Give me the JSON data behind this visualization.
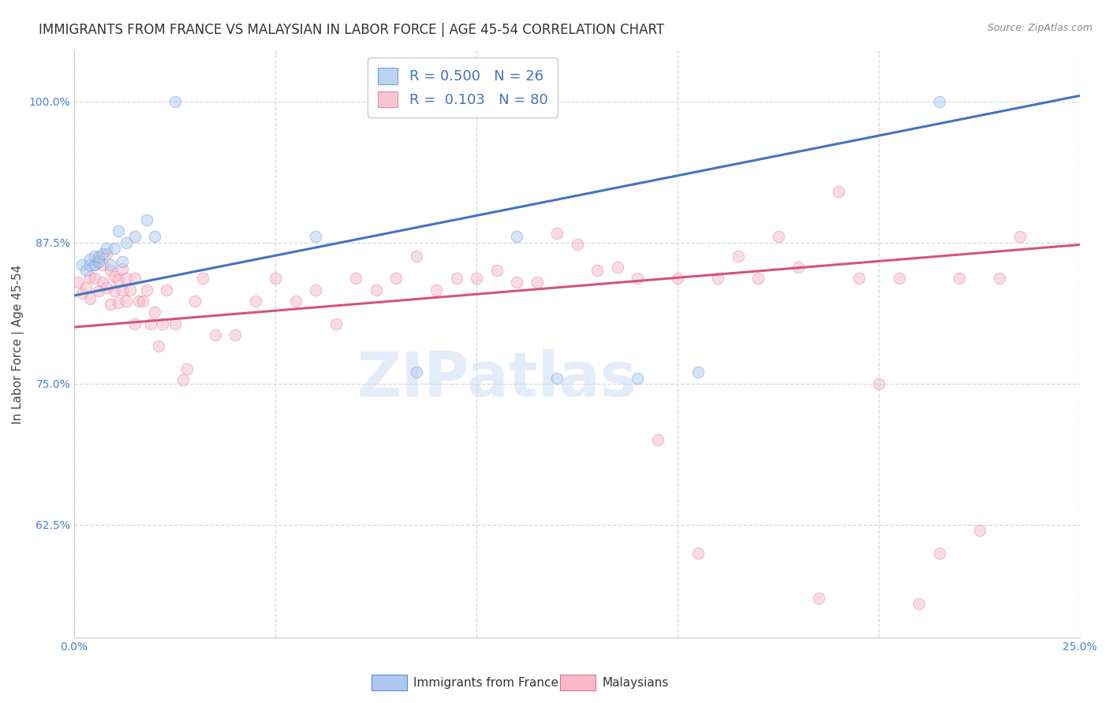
{
  "title": "IMMIGRANTS FROM FRANCE VS MALAYSIAN IN LABOR FORCE | AGE 45-54 CORRELATION CHART",
  "source": "Source: ZipAtlas.com",
  "ylabel": "In Labor Force | Age 45-54",
  "xlim": [
    0.0,
    0.25
  ],
  "ylim": [
    0.525,
    1.045
  ],
  "xticks": [
    0.0,
    0.05,
    0.1,
    0.15,
    0.2,
    0.25
  ],
  "xticklabels": [
    "0.0%",
    "",
    "",
    "",
    "",
    "25.0%"
  ],
  "yticks": [
    0.625,
    0.75,
    0.875,
    1.0
  ],
  "yticklabels": [
    "62.5%",
    "75.0%",
    "87.5%",
    "100.0%"
  ],
  "blue_fill_color": "#adc8f0",
  "blue_edge_color": "#5b8fd4",
  "pink_fill_color": "#f7b8c8",
  "pink_edge_color": "#e07090",
  "blue_line_color": "#4472c4",
  "pink_line_color": "#d4547a",
  "blue_R": 0.5,
  "blue_N": 26,
  "pink_R": 0.103,
  "pink_N": 80,
  "blue_scatter_x": [
    0.002,
    0.003,
    0.004,
    0.004,
    0.005,
    0.005,
    0.006,
    0.006,
    0.007,
    0.008,
    0.009,
    0.01,
    0.011,
    0.012,
    0.013,
    0.015,
    0.018,
    0.02,
    0.025,
    0.06,
    0.085,
    0.11,
    0.12,
    0.14,
    0.155,
    0.215
  ],
  "blue_scatter_y": [
    0.855,
    0.85,
    0.855,
    0.86,
    0.855,
    0.863,
    0.858,
    0.862,
    0.865,
    0.87,
    0.855,
    0.87,
    0.885,
    0.858,
    0.875,
    0.88,
    0.895,
    0.88,
    1.0,
    0.88,
    0.76,
    0.88,
    0.755,
    0.755,
    0.76,
    1.0
  ],
  "pink_scatter_x": [
    0.001,
    0.002,
    0.003,
    0.004,
    0.004,
    0.005,
    0.005,
    0.006,
    0.006,
    0.007,
    0.007,
    0.008,
    0.008,
    0.009,
    0.009,
    0.01,
    0.01,
    0.011,
    0.011,
    0.012,
    0.012,
    0.013,
    0.013,
    0.014,
    0.015,
    0.015,
    0.016,
    0.017,
    0.018,
    0.019,
    0.02,
    0.021,
    0.022,
    0.023,
    0.025,
    0.027,
    0.028,
    0.03,
    0.032,
    0.035,
    0.04,
    0.045,
    0.05,
    0.055,
    0.06,
    0.065,
    0.07,
    0.075,
    0.08,
    0.085,
    0.09,
    0.095,
    0.1,
    0.105,
    0.11,
    0.115,
    0.12,
    0.125,
    0.13,
    0.135,
    0.14,
    0.145,
    0.15,
    0.155,
    0.16,
    0.165,
    0.17,
    0.175,
    0.18,
    0.185,
    0.19,
    0.195,
    0.2,
    0.205,
    0.21,
    0.215,
    0.22,
    0.225,
    0.23,
    0.235
  ],
  "pink_scatter_y": [
    0.84,
    0.83,
    0.835,
    0.845,
    0.825,
    0.843,
    0.855,
    0.86,
    0.832,
    0.855,
    0.84,
    0.865,
    0.835,
    0.82,
    0.85,
    0.845,
    0.832,
    0.842,
    0.822,
    0.852,
    0.833,
    0.843,
    0.823,
    0.833,
    0.843,
    0.803,
    0.823,
    0.823,
    0.833,
    0.803,
    0.813,
    0.783,
    0.803,
    0.833,
    0.803,
    0.753,
    0.763,
    0.823,
    0.843,
    0.793,
    0.793,
    0.823,
    0.843,
    0.823,
    0.833,
    0.803,
    0.843,
    0.833,
    0.843,
    0.863,
    0.833,
    0.843,
    0.843,
    0.85,
    0.84,
    0.84,
    0.883,
    0.873,
    0.85,
    0.853,
    0.843,
    0.7,
    0.843,
    0.6,
    0.843,
    0.863,
    0.843,
    0.88,
    0.853,
    0.56,
    0.92,
    0.843,
    0.75,
    0.843,
    0.555,
    0.6,
    0.843,
    0.62,
    0.843,
    0.88
  ],
  "blue_line_x0": 0.0,
  "blue_line_y0": 0.828,
  "blue_line_x1": 0.25,
  "blue_line_y1": 1.005,
  "pink_line_x0": 0.0,
  "pink_line_y0": 0.8,
  "pink_line_x1": 0.25,
  "pink_line_y1": 0.873,
  "watermark_text": "ZIPatlas",
  "background_color": "#ffffff",
  "grid_color": "#d8d8d8",
  "title_fontsize": 12,
  "axis_label_fontsize": 11,
  "tick_fontsize": 10,
  "legend_fontsize": 13,
  "marker_size": 110,
  "marker_alpha": 0.5,
  "line_width": 2.2
}
